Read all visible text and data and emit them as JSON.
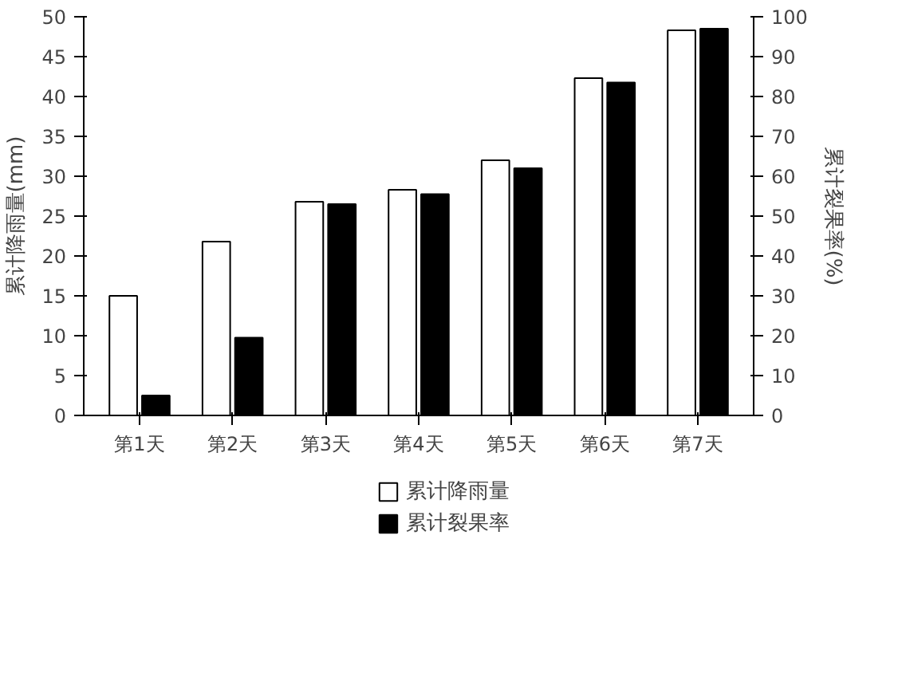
{
  "chart_data": {
    "type": "bar",
    "categories": [
      "第1天",
      "第2天",
      "第3天",
      "第4天",
      "第5天",
      "第6天",
      "第7天"
    ],
    "ylabel": "累计降雨量(mm)",
    "y2label": "累计裂果率(%)",
    "series": [
      {
        "name": "累计降雨量",
        "color": "#ffffff",
        "values": [
          15,
          21.8,
          26.8,
          28.3,
          32,
          42.3,
          48.3
        ]
      },
      {
        "name": "累计裂果率",
        "color": "#000000",
        "axis": "y2",
        "values": [
          5,
          19.5,
          53,
          55.5,
          62,
          83.5,
          97
        ]
      }
    ],
    "ylim": [
      0,
      50
    ],
    "yticks": [
      0,
      5,
      10,
      15,
      20,
      25,
      30,
      35,
      40,
      45,
      50
    ],
    "y2lim": [
      0,
      100
    ],
    "y2ticks": [
      0,
      10,
      20,
      30,
      40,
      50,
      60,
      70,
      80,
      90,
      100
    ],
    "legend": "bottom",
    "grid": false
  }
}
